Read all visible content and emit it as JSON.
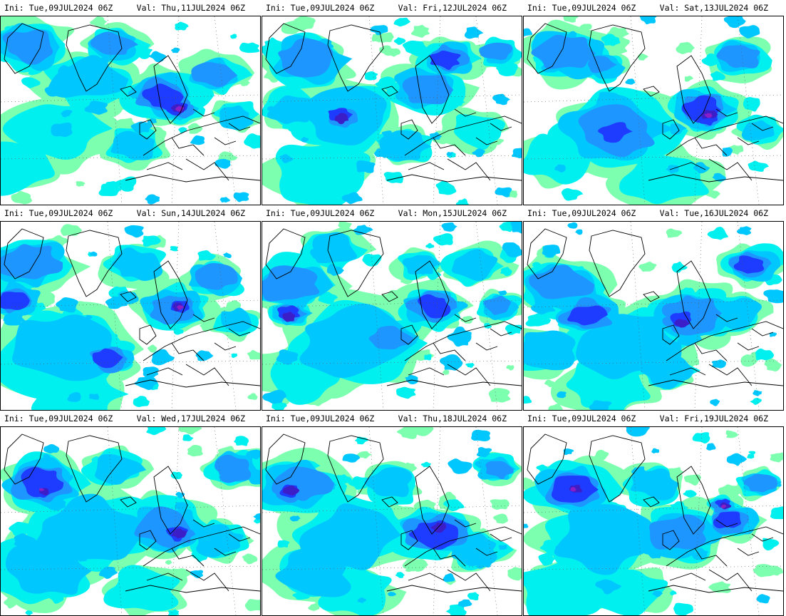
{
  "panels": [
    {
      "ini": "Ini:  Tue,09JUL2024  06Z",
      "val": "Val:  Thu,11JUL2024  06Z"
    },
    {
      "ini": "Ini:  Tue,09JUL2024  06Z",
      "val": "Val:  Fri,12JUL2024  06Z"
    },
    {
      "ini": "Ini:  Tue,09JUL2024  06Z",
      "val": "Val:  Sat,13JUL2024  06Z"
    },
    {
      "ini": "Ini:  Tue,09JUL2024  06Z",
      "val": "Val:  Sun,14JUL2024  06Z"
    },
    {
      "ini": "Ini:  Tue,09JUL2024  06Z",
      "val": "Val:  Mon,15JUL2024  06Z"
    },
    {
      "ini": "Ini:  Tue,09JUL2024  06Z",
      "val": "Val:  Tue,16JUL2024  06Z"
    },
    {
      "ini": "Ini:  Tue,09JUL2024  06Z",
      "val": "Val:  Wed,17JUL2024  06Z"
    },
    {
      "ini": "Ini:  Tue,09JUL2024  06Z",
      "val": "Val:  Thu,18JUL2024  06Z"
    },
    {
      "ini": "Ini:  Tue,09JUL2024  06Z",
      "val": "Val:  Fri,19JUL2024  06Z"
    }
  ],
  "colors": {
    "pale_green": "#7dffb0",
    "aqua": "#00f0f0",
    "cyan": "#00c8ff",
    "sky": "#1e96ff",
    "blue": "#1e3cff",
    "deep_blue": "#3c1ec8",
    "violet": "#8c1ec8",
    "magenta": "#e61ec8",
    "coast": "#000000"
  }
}
